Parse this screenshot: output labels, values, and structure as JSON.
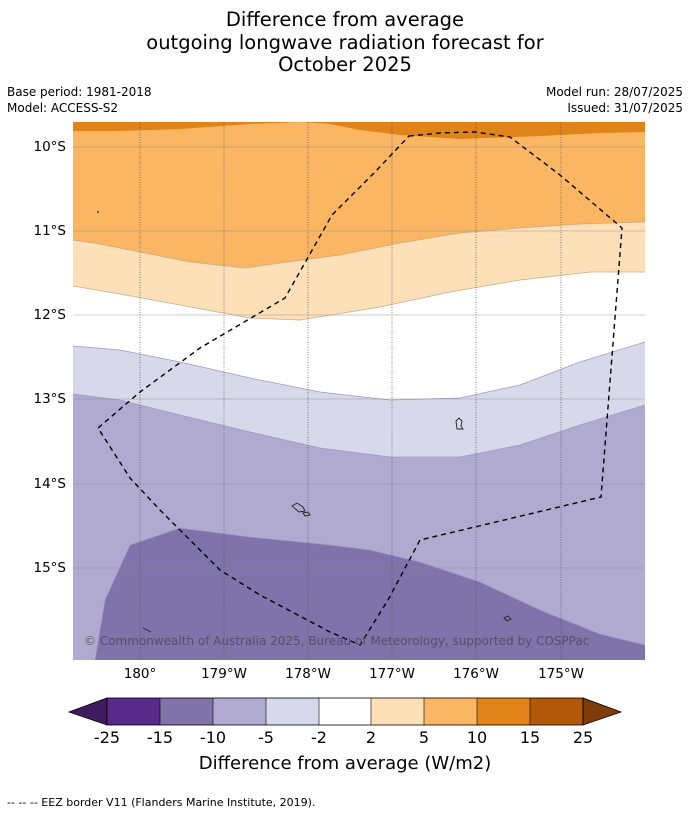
{
  "title_lines": [
    "Difference from average",
    "outgoing longwave radiation forecast for",
    "October 2025"
  ],
  "meta": {
    "base_period": "Base period: 1981-2018",
    "model": "Model: ACCESS-S2",
    "model_run": "Model run: 28/07/2025",
    "issued": "Issued: 31/07/2025"
  },
  "map": {
    "latitude_labels": [
      "10°S",
      "11°S",
      "12°S",
      "13°S",
      "14°S",
      "15°S"
    ],
    "longitude_labels": [
      "180°",
      "179°W",
      "178°W",
      "177°W",
      "176°W",
      "175°W"
    ],
    "copyright": "© Commonwealth of Australia 2025, Bureau of Meteorology, supported by COSPPac",
    "gridlines": true,
    "overlay": "EEZ border (dashed)"
  },
  "colorbar": {
    "ticks": [
      "-25",
      "-15",
      "-10",
      "-5",
      "-2",
      "2",
      "5",
      "10",
      "15",
      "25"
    ],
    "colors": {
      "below_-25": "#3f1a5e",
      "-25_to_-15": "#5a2a8a",
      "-15_to_-10": "#7f73ac",
      "-10_to_-5": "#b0aad0",
      "-5_to_-2": "#d8d8ea",
      "-2_to_2": "#ffffff",
      "2_to_5": "#fde0b8",
      "5_to_10": "#fbb663",
      "10_to_15": "#e08318",
      "15_to_25": "#b35806",
      "above_25": "#7f3b08"
    },
    "label": "Difference from average (W/m2)"
  },
  "footnote": "--  --  -- EEZ border V11 (Flanders Marine Institute, 2019)."
}
